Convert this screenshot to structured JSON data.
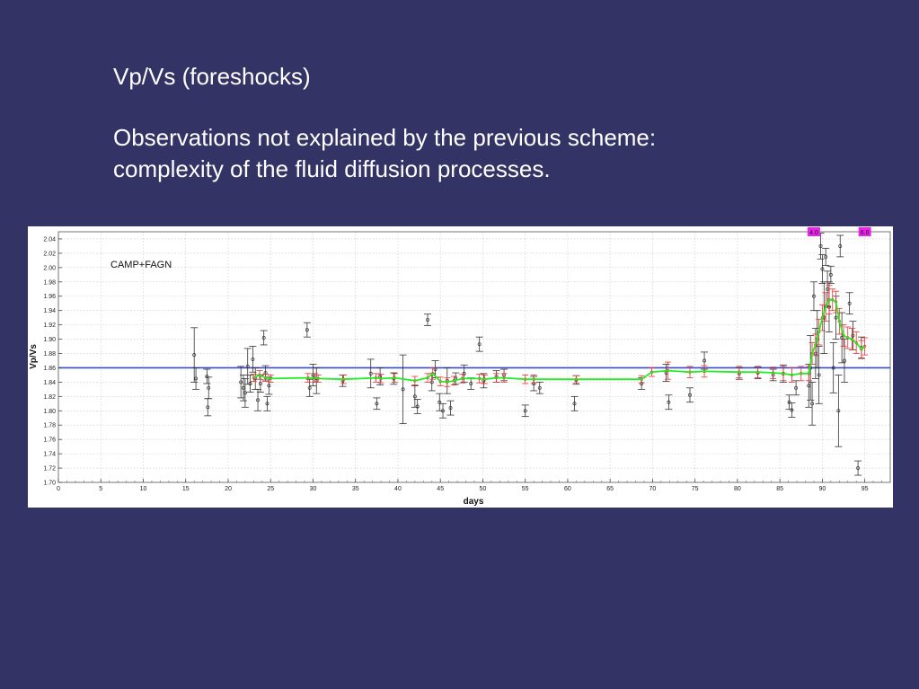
{
  "slide": {
    "title": "Vp/Vs (foreshocks)",
    "body_line1": "Observations not explained by the previous scheme:",
    "body_line2": "complexity of the fluid diffusion processes."
  },
  "colors": {
    "background": "#343366",
    "reference_line": "#3b4bc8",
    "smooth_green": "#22ee22",
    "smooth_red": "#e83030",
    "raw_data": "#333333",
    "marker_magenta": "#ee22ee"
  },
  "chart_data": {
    "type": "scatter",
    "annotation": "CAMP+FAGN",
    "xlabel": "days",
    "ylabel": "Vp/Vs",
    "xlim": [
      0,
      98
    ],
    "ylim": [
      1.7,
      2.05
    ],
    "xticks": [
      0,
      5,
      10,
      15,
      20,
      25,
      30,
      35,
      40,
      45,
      50,
      55,
      60,
      65,
      70,
      75,
      80,
      85,
      90,
      95
    ],
    "yticks": [
      "1.70",
      "1.72",
      "1.74",
      "1.76",
      "1.78",
      "1.80",
      "1.82",
      "1.84",
      "1.86",
      "1.88",
      "1.90",
      "1.92",
      "1.94",
      "1.96",
      "1.98",
      "2.00",
      "2.02",
      "2.04"
    ],
    "grid": true,
    "reference_line": 1.86,
    "event_markers": [
      {
        "x": 89.0,
        "label": "4.0"
      },
      {
        "x": 95.0,
        "label": "6.0"
      }
    ],
    "series": [
      {
        "name": "",
        "style": "raw",
        "points": [
          {
            "x": 16.0,
            "y": 1.878,
            "err": 0.038
          },
          {
            "x": 16.2,
            "y": 1.845,
            "err": 0.015
          },
          {
            "x": 17.5,
            "y": 1.848,
            "err": 0.01
          },
          {
            "x": 17.6,
            "y": 1.805,
            "err": 0.012
          },
          {
            "x": 17.7,
            "y": 1.832,
            "err": 0.015
          },
          {
            "x": 21.5,
            "y": 1.84,
            "err": 0.022
          },
          {
            "x": 21.8,
            "y": 1.832,
            "err": 0.018
          },
          {
            "x": 22.0,
            "y": 1.825,
            "err": 0.02
          },
          {
            "x": 22.3,
            "y": 1.862,
            "err": 0.025
          },
          {
            "x": 22.6,
            "y": 1.838,
            "err": 0.012
          },
          {
            "x": 22.9,
            "y": 1.872,
            "err": 0.018
          },
          {
            "x": 23.2,
            "y": 1.845,
            "err": 0.015
          },
          {
            "x": 23.5,
            "y": 1.815,
            "err": 0.015
          },
          {
            "x": 23.8,
            "y": 1.838,
            "err": 0.012
          },
          {
            "x": 24.2,
            "y": 1.902,
            "err": 0.01
          },
          {
            "x": 24.4,
            "y": 1.853,
            "err": 0.01
          },
          {
            "x": 24.6,
            "y": 1.81,
            "err": 0.01
          },
          {
            "x": 24.8,
            "y": 1.835,
            "err": 0.012
          },
          {
            "x": 29.3,
            "y": 1.913,
            "err": 0.01
          },
          {
            "x": 29.6,
            "y": 1.832,
            "err": 0.012
          },
          {
            "x": 30.0,
            "y": 1.85,
            "err": 0.015
          },
          {
            "x": 30.4,
            "y": 1.842,
            "err": 0.018
          },
          {
            "x": 33.5,
            "y": 1.842,
            "err": 0.008
          },
          {
            "x": 36.8,
            "y": 1.852,
            "err": 0.02
          },
          {
            "x": 37.5,
            "y": 1.81,
            "err": 0.008
          },
          {
            "x": 37.9,
            "y": 1.848,
            "err": 0.012
          },
          {
            "x": 39.5,
            "y": 1.845,
            "err": 0.008
          },
          {
            "x": 40.6,
            "y": 1.83,
            "err": 0.048
          },
          {
            "x": 42.0,
            "y": 1.82,
            "err": 0.015
          },
          {
            "x": 42.3,
            "y": 1.806,
            "err": 0.01
          },
          {
            "x": 43.5,
            "y": 1.927,
            "err": 0.008
          },
          {
            "x": 44.0,
            "y": 1.84,
            "err": 0.012
          },
          {
            "x": 44.4,
            "y": 1.858,
            "err": 0.012
          },
          {
            "x": 44.9,
            "y": 1.812,
            "err": 0.012
          },
          {
            "x": 45.3,
            "y": 1.8,
            "err": 0.01
          },
          {
            "x": 45.8,
            "y": 1.842,
            "err": 0.018
          },
          {
            "x": 46.2,
            "y": 1.804,
            "err": 0.01
          },
          {
            "x": 46.8,
            "y": 1.845,
            "err": 0.008
          },
          {
            "x": 47.8,
            "y": 1.852,
            "err": 0.012
          },
          {
            "x": 48.6,
            "y": 1.838,
            "err": 0.008
          },
          {
            "x": 49.6,
            "y": 1.893,
            "err": 0.01
          },
          {
            "x": 50.1,
            "y": 1.842,
            "err": 0.01
          },
          {
            "x": 51.6,
            "y": 1.848,
            "err": 0.008
          },
          {
            "x": 52.5,
            "y": 1.85,
            "err": 0.008
          },
          {
            "x": 55.0,
            "y": 1.8,
            "err": 0.008
          },
          {
            "x": 56.0,
            "y": 1.838,
            "err": 0.01
          },
          {
            "x": 56.7,
            "y": 1.832,
            "err": 0.008
          },
          {
            "x": 60.8,
            "y": 1.81,
            "err": 0.01
          },
          {
            "x": 61.0,
            "y": 1.843,
            "err": 0.006
          },
          {
            "x": 68.7,
            "y": 1.838,
            "err": 0.008
          },
          {
            "x": 71.6,
            "y": 1.853,
            "err": 0.012
          },
          {
            "x": 71.9,
            "y": 1.812,
            "err": 0.01
          },
          {
            "x": 74.4,
            "y": 1.822,
            "err": 0.01
          },
          {
            "x": 76.1,
            "y": 1.87,
            "err": 0.012
          },
          {
            "x": 80.2,
            "y": 1.852,
            "err": 0.008
          },
          {
            "x": 82.4,
            "y": 1.853,
            "err": 0.008
          },
          {
            "x": 84.2,
            "y": 1.85,
            "err": 0.008
          },
          {
            "x": 85.4,
            "y": 1.852,
            "err": 0.012
          },
          {
            "x": 86.1,
            "y": 1.812,
            "err": 0.01
          },
          {
            "x": 86.4,
            "y": 1.801,
            "err": 0.01
          },
          {
            "x": 86.9,
            "y": 1.832,
            "err": 0.01
          },
          {
            "x": 88.4,
            "y": 1.835,
            "err": 0.03
          },
          {
            "x": 88.6,
            "y": 1.86,
            "err": 0.045
          },
          {
            "x": 88.8,
            "y": 1.81,
            "err": 0.03
          },
          {
            "x": 89.0,
            "y": 1.96,
            "err": 0.02
          },
          {
            "x": 89.2,
            "y": 1.88,
            "err": 0.035
          },
          {
            "x": 89.4,
            "y": 1.9,
            "err": 0.04
          },
          {
            "x": 89.6,
            "y": 1.85,
            "err": 0.04
          },
          {
            "x": 89.8,
            "y": 2.03,
            "err": 0.018
          },
          {
            "x": 90.0,
            "y": 1.998,
            "err": 0.02
          },
          {
            "x": 90.2,
            "y": 1.93,
            "err": 0.05
          },
          {
            "x": 90.4,
            "y": 2.015,
            "err": 0.012
          },
          {
            "x": 90.6,
            "y": 1.97,
            "err": 0.025
          },
          {
            "x": 90.8,
            "y": 1.945,
            "err": 0.035
          },
          {
            "x": 91.0,
            "y": 1.99,
            "err": 0.012
          },
          {
            "x": 91.3,
            "y": 1.86,
            "err": 0.035
          },
          {
            "x": 91.6,
            "y": 1.93,
            "err": 0.03
          },
          {
            "x": 91.9,
            "y": 1.8,
            "err": 0.05
          },
          {
            "x": 92.1,
            "y": 2.03,
            "err": 0.015
          },
          {
            "x": 92.3,
            "y": 1.902,
            "err": 0.035
          },
          {
            "x": 92.6,
            "y": 1.87,
            "err": 0.03
          },
          {
            "x": 93.2,
            "y": 1.95,
            "err": 0.015
          },
          {
            "x": 93.6,
            "y": 1.905,
            "err": 0.02
          },
          {
            "x": 94.2,
            "y": 1.72,
            "err": 0.01
          },
          {
            "x": 94.6,
            "y": 1.888,
            "err": 0.015
          }
        ]
      },
      {
        "name": "",
        "style": "smoothed",
        "points": [
          {
            "x": 23.0,
            "y": 1.846,
            "err": 0.005
          },
          {
            "x": 23.7,
            "y": 1.85,
            "err": 0.006
          },
          {
            "x": 24.4,
            "y": 1.846,
            "err": 0.005
          },
          {
            "x": 25.0,
            "y": 1.845,
            "err": 0.005
          },
          {
            "x": 29.4,
            "y": 1.846,
            "err": 0.006
          },
          {
            "x": 30.2,
            "y": 1.846,
            "err": 0.006
          },
          {
            "x": 30.6,
            "y": 1.845,
            "err": 0.005
          },
          {
            "x": 33.6,
            "y": 1.844,
            "err": 0.006
          },
          {
            "x": 37.4,
            "y": 1.846,
            "err": 0.006
          },
          {
            "x": 38.0,
            "y": 1.845,
            "err": 0.006
          },
          {
            "x": 39.6,
            "y": 1.846,
            "err": 0.006
          },
          {
            "x": 42.0,
            "y": 1.842,
            "err": 0.006
          },
          {
            "x": 43.5,
            "y": 1.846,
            "err": 0.006
          },
          {
            "x": 44.1,
            "y": 1.852,
            "err": 0.008
          },
          {
            "x": 45.0,
            "y": 1.841,
            "err": 0.006
          },
          {
            "x": 45.8,
            "y": 1.84,
            "err": 0.006
          },
          {
            "x": 46.6,
            "y": 1.842,
            "err": 0.006
          },
          {
            "x": 47.6,
            "y": 1.845,
            "err": 0.006
          },
          {
            "x": 49.6,
            "y": 1.845,
            "err": 0.006
          },
          {
            "x": 50.2,
            "y": 1.844,
            "err": 0.006
          },
          {
            "x": 51.6,
            "y": 1.846,
            "err": 0.006
          },
          {
            "x": 52.5,
            "y": 1.846,
            "err": 0.006
          },
          {
            "x": 55.0,
            "y": 1.844,
            "err": 0.006
          },
          {
            "x": 56.0,
            "y": 1.844,
            "err": 0.006
          },
          {
            "x": 61.0,
            "y": 1.844,
            "err": 0.005
          },
          {
            "x": 68.7,
            "y": 1.844,
            "err": 0.005
          },
          {
            "x": 69.9,
            "y": 1.854,
            "err": 0.006
          },
          {
            "x": 71.8,
            "y": 1.856,
            "err": 0.012
          },
          {
            "x": 74.4,
            "y": 1.854,
            "err": 0.008
          },
          {
            "x": 76.1,
            "y": 1.855,
            "err": 0.008
          },
          {
            "x": 80.2,
            "y": 1.854,
            "err": 0.008
          },
          {
            "x": 82.4,
            "y": 1.854,
            "err": 0.008
          },
          {
            "x": 84.2,
            "y": 1.853,
            "err": 0.008
          },
          {
            "x": 85.4,
            "y": 1.852,
            "err": 0.01
          },
          {
            "x": 86.4,
            "y": 1.85,
            "err": 0.01
          },
          {
            "x": 87.5,
            "y": 1.852,
            "err": 0.01
          },
          {
            "x": 88.4,
            "y": 1.852,
            "err": 0.01
          },
          {
            "x": 88.8,
            "y": 1.88,
            "err": 0.015
          },
          {
            "x": 89.2,
            "y": 1.892,
            "err": 0.015
          },
          {
            "x": 89.6,
            "y": 1.91,
            "err": 0.018
          },
          {
            "x": 90.0,
            "y": 1.93,
            "err": 0.018
          },
          {
            "x": 90.4,
            "y": 1.945,
            "err": 0.02
          },
          {
            "x": 90.8,
            "y": 1.955,
            "err": 0.02
          },
          {
            "x": 91.2,
            "y": 1.955,
            "err": 0.015
          },
          {
            "x": 91.6,
            "y": 1.952,
            "err": 0.015
          },
          {
            "x": 92.0,
            "y": 1.925,
            "err": 0.018
          },
          {
            "x": 92.5,
            "y": 1.905,
            "err": 0.015
          },
          {
            "x": 93.0,
            "y": 1.902,
            "err": 0.015
          },
          {
            "x": 93.5,
            "y": 1.9,
            "err": 0.015
          },
          {
            "x": 94.0,
            "y": 1.895,
            "err": 0.015
          },
          {
            "x": 94.6,
            "y": 1.886,
            "err": 0.012
          },
          {
            "x": 95.0,
            "y": 1.89,
            "err": 0.012
          }
        ]
      }
    ]
  }
}
